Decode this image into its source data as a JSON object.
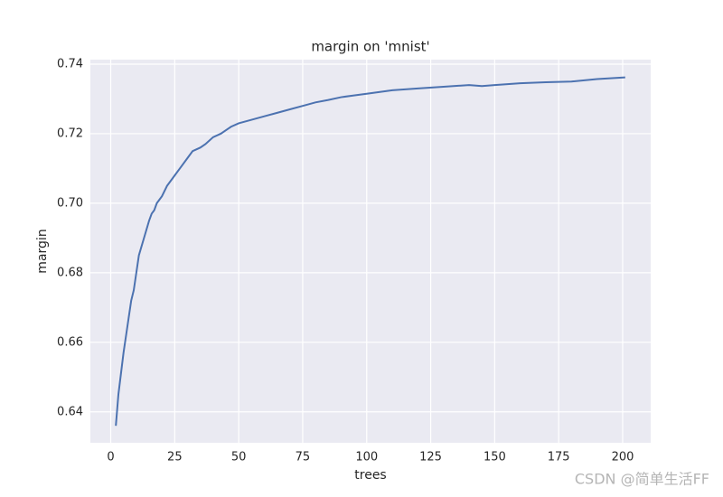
{
  "chart_data": {
    "type": "line",
    "title": "margin on 'mnist'",
    "x_label": "trees",
    "y_label": "margin",
    "x": [
      2,
      3,
      5,
      7,
      8,
      9,
      11,
      13,
      15,
      16,
      17,
      18,
      20,
      22,
      25,
      27,
      30,
      32,
      35,
      37,
      40,
      43,
      47,
      50,
      55,
      60,
      65,
      70,
      75,
      80,
      85,
      90,
      95,
      100,
      110,
      120,
      130,
      140,
      145,
      150,
      160,
      170,
      180,
      190,
      201
    ],
    "series": [
      {
        "color": "#4c72b0",
        "values": [
          0.636,
          0.645,
          0.657,
          0.667,
          0.672,
          0.675,
          0.685,
          0.69,
          0.695,
          0.697,
          0.698,
          0.7,
          0.702,
          0.705,
          0.708,
          0.71,
          0.713,
          0.715,
          0.716,
          0.717,
          0.719,
          0.72,
          0.722,
          0.723,
          0.724,
          0.725,
          0.726,
          0.727,
          0.728,
          0.729,
          0.7297,
          0.7305,
          0.731,
          0.7315,
          0.7325,
          0.733,
          0.7335,
          0.734,
          0.7337,
          0.734,
          0.7345,
          0.7348,
          0.735,
          0.7357,
          0.7362
        ]
      }
    ],
    "xlim": [
      -7.95,
      210.95
    ],
    "xticks": [
      0,
      25,
      50,
      75,
      100,
      125,
      150,
      175,
      200
    ],
    "ylim": [
      0.6311,
      0.7413
    ],
    "yticks": [
      0.64,
      0.66,
      0.68,
      {
        "value": 0.7,
        "label": "0.70"
      },
      0.72,
      0.74
    ],
    "grid": true,
    "background": "#eaeaf2",
    "annotation": "CSDN @简单生活FF"
  }
}
